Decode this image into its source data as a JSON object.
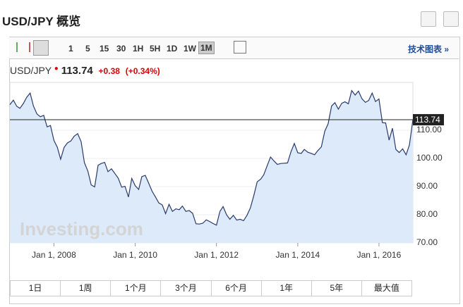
{
  "header": {
    "title": "USD/JPY 概览"
  },
  "toolbar": {
    "intervals": [
      "1",
      "5",
      "15",
      "30",
      "1H",
      "5H",
      "1D",
      "1W",
      "1M"
    ],
    "selected": "1M",
    "technical": "技术图表 »"
  },
  "quote": {
    "symbol": "USD/JPY",
    "price": "113.74",
    "change": "+0.38",
    "change_pct": "(+0.34%)"
  },
  "chart_data": {
    "type": "line",
    "x": [
      "2006-12-01",
      "2007-01-01",
      "2007-02-01",
      "2007-03-01",
      "2007-04-01",
      "2007-05-01",
      "2007-06-01",
      "2007-07-01",
      "2007-08-01",
      "2007-09-01",
      "2007-10-01",
      "2007-11-01",
      "2007-12-01",
      "2008-01-01",
      "2008-02-01",
      "2008-03-01",
      "2008-04-01",
      "2008-05-01",
      "2008-06-01",
      "2008-07-01",
      "2008-08-01",
      "2008-09-01",
      "2008-10-01",
      "2008-11-01",
      "2008-12-01",
      "2009-01-01",
      "2009-02-01",
      "2009-03-01",
      "2009-04-01",
      "2009-05-01",
      "2009-06-01",
      "2009-07-01",
      "2009-08-01",
      "2009-09-01",
      "2009-10-01",
      "2009-11-01",
      "2009-12-01",
      "2010-01-01",
      "2010-02-01",
      "2010-03-01",
      "2010-04-01",
      "2010-05-01",
      "2010-06-01",
      "2010-07-01",
      "2010-08-01",
      "2010-09-01",
      "2010-10-01",
      "2010-11-01",
      "2010-12-01",
      "2011-01-01",
      "2011-02-01",
      "2011-03-01",
      "2011-04-01",
      "2011-05-01",
      "2011-06-01",
      "2011-07-01",
      "2011-08-01",
      "2011-09-01",
      "2011-10-01",
      "2011-11-01",
      "2011-12-01",
      "2012-01-01",
      "2012-02-01",
      "2012-03-01",
      "2012-04-01",
      "2012-05-01",
      "2012-06-01",
      "2012-07-01",
      "2012-08-01",
      "2012-09-01",
      "2012-10-01",
      "2012-11-01",
      "2012-12-01",
      "2013-01-01",
      "2013-02-01",
      "2013-03-01",
      "2013-04-01",
      "2013-05-01",
      "2013-06-01",
      "2013-07-01",
      "2013-08-01",
      "2013-09-01",
      "2013-10-01",
      "2013-11-01",
      "2013-12-01",
      "2014-01-01",
      "2014-02-01",
      "2014-03-01",
      "2014-04-01",
      "2014-05-01",
      "2014-06-01",
      "2014-07-01",
      "2014-08-01",
      "2014-09-01",
      "2014-10-01",
      "2014-11-01",
      "2014-12-01",
      "2015-01-01",
      "2015-02-01",
      "2015-03-01",
      "2015-04-01",
      "2015-05-01",
      "2015-06-01",
      "2015-07-01",
      "2015-08-01",
      "2015-09-01",
      "2015-10-01",
      "2015-11-01",
      "2015-12-01",
      "2016-01-01",
      "2016-02-01",
      "2016-03-01",
      "2016-04-01",
      "2016-05-01",
      "2016-06-01",
      "2016-07-01",
      "2016-08-01",
      "2016-09-01",
      "2016-10-01",
      "2016-11-01"
    ],
    "series": [
      {
        "name": "USD/JPY",
        "color": "#2a3a6b",
        "fill": "#dceafa",
        "values": [
          119.1,
          120.7,
          118.5,
          117.8,
          119.5,
          121.7,
          123.2,
          118.6,
          115.8,
          114.8,
          115.3,
          111.2,
          111.7,
          106.4,
          103.9,
          99.7,
          103.9,
          105.5,
          106.2,
          107.9,
          108.8,
          106.0,
          98.5,
          95.5,
          90.6,
          89.9,
          97.6,
          98.2,
          98.6,
          95.3,
          96.3,
          94.7,
          93.0,
          89.8,
          90.1,
          86.3,
          92.9,
          90.3,
          89.0,
          93.5,
          94.0,
          91.3,
          88.4,
          86.4,
          84.2,
          83.5,
          80.4,
          83.7,
          81.2,
          82.1,
          81.8,
          83.1,
          81.2,
          81.5,
          80.5,
          76.8,
          76.7,
          77.0,
          78.2,
          77.6,
          76.9,
          76.3,
          81.2,
          82.9,
          80.0,
          78.4,
          79.8,
          78.1,
          78.4,
          77.9,
          79.8,
          82.4,
          86.7,
          91.7,
          92.6,
          94.2,
          97.4,
          100.5,
          99.1,
          97.9,
          98.2,
          98.3,
          98.4,
          102.4,
          105.3,
          102.0,
          101.8,
          103.2,
          102.2,
          101.8,
          101.3,
          102.8,
          104.1,
          109.7,
          112.3,
          118.6,
          119.8,
          117.5,
          119.6,
          120.1,
          119.4,
          124.1,
          122.5,
          123.9,
          121.2,
          119.9,
          120.6,
          123.2,
          120.2,
          121.1,
          112.7,
          112.6,
          106.5,
          110.7,
          103.2,
          102.1,
          103.4,
          101.3,
          104.8,
          113.74
        ]
      }
    ],
    "xlim": [
      "2006-12-01",
      "2016-11-01"
    ],
    "xticks": [
      {
        "value": "2008-01-01",
        "label": "Jan 1, 2008"
      },
      {
        "value": "2010-01-01",
        "label": "Jan 1, 2010"
      },
      {
        "value": "2012-01-01",
        "label": "Jan 1, 2012"
      },
      {
        "value": "2014-01-01",
        "label": "Jan 1, 2014"
      },
      {
        "value": "2016-01-01",
        "label": "Jan 1, 2016"
      }
    ],
    "ylim": [
      70,
      127
    ],
    "yticks": [
      {
        "value": 70,
        "label": "70.00"
      },
      {
        "value": 80,
        "label": "80.00"
      },
      {
        "value": 90,
        "label": "90.00"
      },
      {
        "value": 100,
        "label": "100.00"
      },
      {
        "value": 110,
        "label": "110.00"
      }
    ],
    "reference_line": 113.74,
    "watermark": "Investing.com"
  },
  "ranges": [
    "1日",
    "1周",
    "1个月",
    "3个月",
    "6个月",
    "1年",
    "5年",
    "最大值"
  ]
}
